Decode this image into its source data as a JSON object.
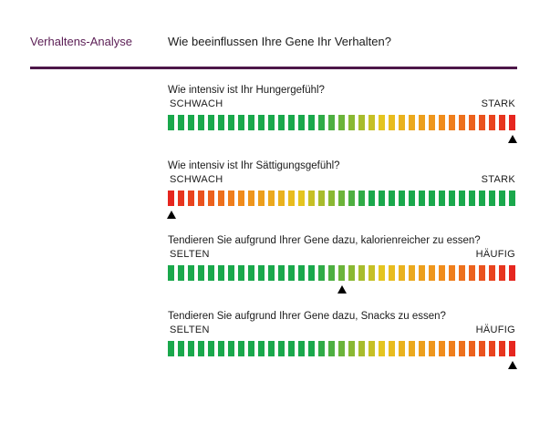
{
  "header": {
    "section_label": "Verhaltens-Analyse",
    "title": "Wie beeinflussen Ihre Gene Ihr Verhalten?"
  },
  "colors": {
    "accent": "#4d1749",
    "green": "#1aa84c",
    "yellow": "#e6c51f",
    "orange": "#f08a1c",
    "red": "#e6261f"
  },
  "questions": [
    {
      "text": "Wie intensiv ist Ihr Hungergefühl?",
      "low_label": "SCHWACH",
      "high_label": "STARK",
      "direction": "green-to-red",
      "marker_position": 1.0
    },
    {
      "text": "Wie intensiv ist Ihr Sättigungsgefühl?",
      "low_label": "SCHWACH",
      "high_label": "STARK",
      "direction": "red-to-green",
      "marker_position": 0.0
    },
    {
      "text": "Tendieren Sie aufgrund Ihrer Gene dazu, kalorienreicher zu essen?",
      "low_label": "SELTEN",
      "high_label": "HÄUFIG",
      "direction": "green-to-red",
      "marker_position": 0.5
    },
    {
      "text": "Tendieren Sie aufgrund Ihrer Gene dazu, Snacks zu essen?",
      "low_label": "SELTEN",
      "high_label": "HÄUFIG",
      "direction": "green-to-red",
      "marker_position": 1.0
    }
  ]
}
